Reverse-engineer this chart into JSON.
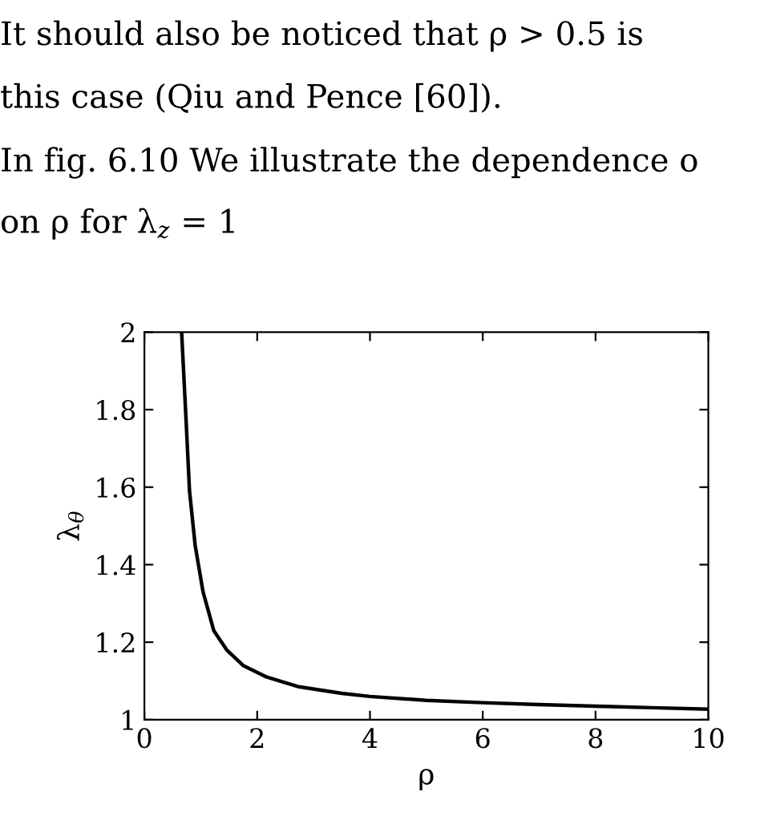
{
  "chart_data": {
    "type": "line",
    "annotations": [
      "It should also be noticed that ρ > 0.5 is",
      "this case (Qiu and Pence [60]).",
      "In fig. 6.10 We illustrate the dependence o",
      "on ρ for λ$_{z}$ = 1"
    ],
    "xlabel": "ρ",
    "ylabel": "λ$_{θ}$",
    "series": [
      {
        "color": "#000000",
        "x": [
          0.66,
          0.74,
          0.8,
          0.9,
          1.04,
          1.23,
          1.46,
          1.75,
          2.17,
          2.74,
          3.5,
          4,
          5,
          6,
          7,
          8,
          9,
          10
        ],
        "values": [
          2,
          1.77,
          1.59,
          1.45,
          1.33,
          1.23,
          1.18,
          1.14,
          1.11,
          1.085,
          1.068,
          1.06,
          1.05,
          1.044,
          1.039,
          1.035,
          1.031,
          1.027
        ]
      }
    ],
    "xlim": [
      0,
      10
    ],
    "ylim": [
      1,
      2
    ],
    "xticks": [
      0,
      2,
      4,
      6,
      8,
      10
    ],
    "yticks": [
      1,
      1.2,
      1.4,
      1.6,
      1.8,
      2
    ],
    "grid": false,
    "legend": false,
    "marker": "none",
    "line_style": "solid"
  }
}
